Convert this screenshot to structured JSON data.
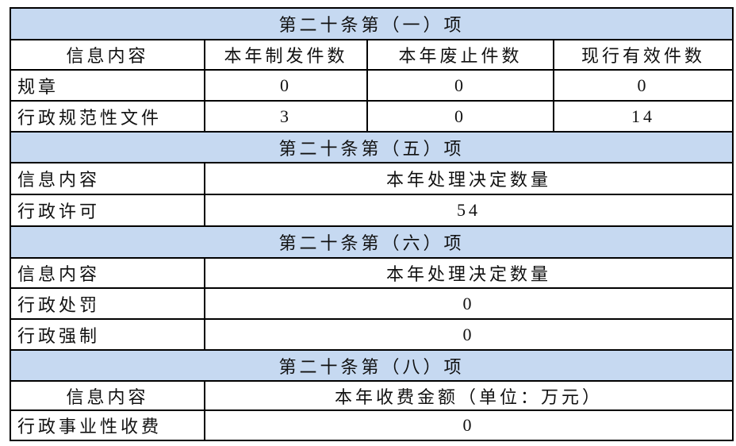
{
  "colors": {
    "section_bg": "#c6d9f1",
    "border": "#000000"
  },
  "sections": [
    {
      "title": "第二十条第（一）项",
      "headers": [
        "信息内容",
        "本年制发件数",
        "本年废止件数",
        "现行有效件数"
      ],
      "rows": [
        [
          "规章",
          "0",
          "0",
          "0"
        ],
        [
          "行政规范性文件",
          "3",
          "0",
          "14"
        ]
      ]
    },
    {
      "title": "第二十条第（五）项",
      "headers": [
        "信息内容",
        "本年处理决定数量"
      ],
      "rows": [
        [
          "行政许可",
          "54"
        ]
      ]
    },
    {
      "title": "第二十条第（六）项",
      "headers": [
        "信息内容",
        "本年处理决定数量"
      ],
      "rows": [
        [
          "行政处罚",
          "0"
        ],
        [
          "行政强制",
          "0"
        ]
      ]
    },
    {
      "title": "第二十条第（八）项",
      "headers": [
        "信息内容",
        "本年收费金额（单位：万元）"
      ],
      "rows": [
        [
          "行政事业性收费",
          "0"
        ]
      ]
    }
  ]
}
